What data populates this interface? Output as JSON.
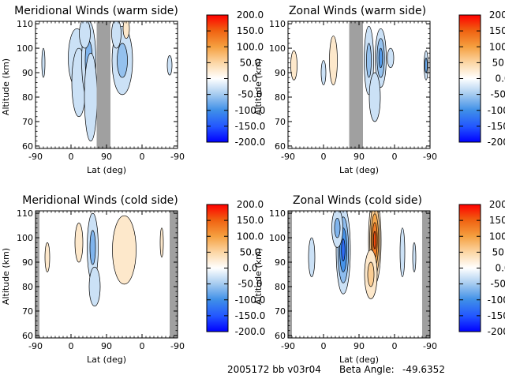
{
  "footer": {
    "id": "2005172 bb v03r04",
    "beta_label": "Beta Angle:",
    "beta_value": "-49.6352"
  },
  "chart_data": [
    {
      "type": "heatmap",
      "title": "Meridional Winds (warm side)",
      "xlabel": "Lat (deg)",
      "ylabel": "Altitude (km)",
      "x_tick_labels": [
        "-90",
        "0",
        "90",
        "0",
        "-90"
      ],
      "y_ticks": [
        60,
        70,
        80,
        90,
        100,
        110
      ],
      "ylim": [
        59,
        111
      ],
      "colorbar_ticks": [
        "200.0",
        "150.0",
        "100.0",
        "50.0",
        "0.0",
        "-50.0",
        "-100.0",
        "-150.0",
        "-200.0"
      ],
      "colorbar_range": [
        -200,
        200
      ],
      "masked_lat": [
        [
          65,
          100
        ]
      ],
      "features": [
        {
          "lat": 15,
          "alt": 96,
          "value": -40,
          "w": 22,
          "h": 12
        },
        {
          "lat": 20,
          "alt": 86,
          "value": -30,
          "w": 18,
          "h": 14
        },
        {
          "lat": 45,
          "alt": 95,
          "value": -70,
          "w": 18,
          "h": 16
        },
        {
          "lat": 50,
          "alt": 80,
          "value": -40,
          "w": 16,
          "h": 18
        },
        {
          "lat": 35,
          "alt": 106,
          "value": -50,
          "w": 14,
          "h": 6
        },
        {
          "lat": 130,
          "alt": 95,
          "value": -60,
          "w": 26,
          "h": 14
        },
        {
          "lat": 115,
          "alt": 106,
          "value": -40,
          "w": 12,
          "h": 6
        },
        {
          "lat": 140,
          "alt": 108,
          "value": 30,
          "w": 8,
          "h": 4
        },
        {
          "lat": 250,
          "alt": 93,
          "value": -30,
          "w": 6,
          "h": 4
        },
        {
          "lat": -70,
          "alt": 94,
          "value": -30,
          "w": 4,
          "h": 6
        }
      ]
    },
    {
      "type": "heatmap",
      "title": "Zonal Winds (warm side)",
      "xlabel": "Lat (deg)",
      "ylabel": "Altitude (km)",
      "x_tick_labels": [
        "-90",
        "0",
        "90",
        "0",
        "-90"
      ],
      "y_ticks": [
        60,
        70,
        80,
        90,
        100,
        110
      ],
      "ylim": [
        59,
        111
      ],
      "colorbar_ticks": [
        "200.0",
        "150.0",
        "100.0",
        "50.0",
        "0.0",
        "-50.0",
        "-100.0",
        "-150.0",
        "-200.0"
      ],
      "colorbar_range": [
        -200,
        200
      ],
      "masked_lat": [
        [
          65,
          100
        ]
      ],
      "features": [
        {
          "lat": -75,
          "alt": 93,
          "value": 40,
          "w": 8,
          "h": 6
        },
        {
          "lat": 25,
          "alt": 95,
          "value": 50,
          "w": 10,
          "h": 10
        },
        {
          "lat": 0,
          "alt": 90,
          "value": -30,
          "w": 6,
          "h": 5
        },
        {
          "lat": 115,
          "alt": 95,
          "value": -60,
          "w": 12,
          "h": 14
        },
        {
          "lat": 145,
          "alt": 96,
          "value": -90,
          "w": 14,
          "h": 12
        },
        {
          "lat": 130,
          "alt": 80,
          "value": -40,
          "w": 14,
          "h": 10
        },
        {
          "lat": 170,
          "alt": 96,
          "value": -30,
          "w": 8,
          "h": 4
        },
        {
          "lat": 260,
          "alt": 93,
          "value": -80,
          "w": 5,
          "h": 6
        }
      ]
    },
    {
      "type": "heatmap",
      "title": "Meridional Winds (cold side)",
      "xlabel": "Lat (deg)",
      "ylabel": "Altitude (km)",
      "x_tick_labels": [
        "-90",
        "0",
        "90",
        "0",
        "-90"
      ],
      "y_ticks": [
        60,
        70,
        80,
        90,
        100,
        110
      ],
      "ylim": [
        59,
        111
      ],
      "colorbar_ticks": [
        "200.0",
        "150.0",
        "100.0",
        "50.0",
        "0.0",
        "-50.0",
        "-100.0",
        "-150.0",
        "-200.0"
      ],
      "colorbar_range": [
        -200,
        200
      ],
      "masked_lat": [
        [
          -90,
          -80
        ],
        [
          250,
          270
        ]
      ],
      "features": [
        {
          "lat": 55,
          "alt": 96,
          "value": -70,
          "w": 14,
          "h": 14
        },
        {
          "lat": 60,
          "alt": 80,
          "value": -50,
          "w": 14,
          "h": 8
        },
        {
          "lat": 20,
          "alt": 98,
          "value": 30,
          "w": 10,
          "h": 8
        },
        {
          "lat": 135,
          "alt": 95,
          "value": 30,
          "w": 30,
          "h": 14
        },
        {
          "lat": -60,
          "alt": 92,
          "value": 20,
          "w": 6,
          "h": 6
        },
        {
          "lat": 230,
          "alt": 98,
          "value": 20,
          "w": 4,
          "h": 6
        }
      ]
    },
    {
      "type": "heatmap",
      "title": "Zonal Winds (cold side)",
      "xlabel": "Lat (deg)",
      "ylabel": "Altitude (km)",
      "x_tick_labels": [
        "-90",
        "0",
        "90",
        "0",
        "-90"
      ],
      "y_ticks": [
        60,
        70,
        80,
        90,
        100,
        110
      ],
      "ylim": [
        59,
        111
      ],
      "colorbar_ticks": [
        "200.0",
        "150.0",
        "100.0",
        "50.0",
        "0.0",
        "-50.0",
        "-100.0",
        "-150.0",
        "-200.0"
      ],
      "colorbar_range": [
        -200,
        200
      ],
      "masked_lat": [
        [
          -90,
          -80
        ],
        [
          250,
          270
        ]
      ],
      "features": [
        {
          "lat": 50,
          "alt": 95,
          "value": -130,
          "w": 18,
          "h": 18
        },
        {
          "lat": 35,
          "alt": 104,
          "value": -70,
          "w": 14,
          "h": 8
        },
        {
          "lat": 130,
          "alt": 99,
          "value": 160,
          "w": 16,
          "h": 18
        },
        {
          "lat": 120,
          "alt": 85,
          "value": 60,
          "w": 16,
          "h": 10
        },
        {
          "lat": -30,
          "alt": 92,
          "value": -30,
          "w": 8,
          "h": 8
        },
        {
          "lat": 200,
          "alt": 94,
          "value": -30,
          "w": 6,
          "h": 10
        },
        {
          "lat": 230,
          "alt": 92,
          "value": -30,
          "w": 4,
          "h": 6
        }
      ]
    }
  ]
}
